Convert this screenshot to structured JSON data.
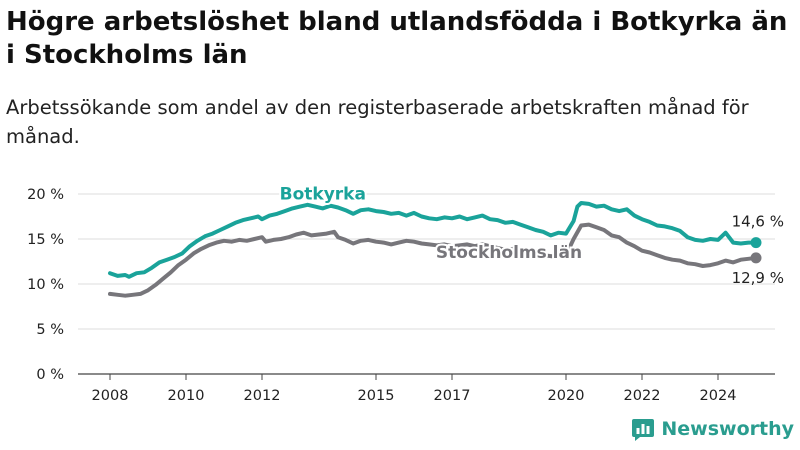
{
  "title": "Högre arbetslöshet bland utlandsfödda i Botkyrka än i Stockholms län",
  "subtitle": "Arbetssökande som andel av den registerbaserade arbetskraften månad för månad.",
  "brand": "Newsworthy",
  "colors": {
    "botkyrka": "#1aa39a",
    "stockholm": "#77767b",
    "grid": "#dddddd",
    "axis": "#444444"
  },
  "chart_data": {
    "type": "line",
    "xlabel": "",
    "ylabel": "",
    "ylim": [
      0,
      20
    ],
    "xlim": [
      2008,
      2025.5
    ],
    "grid": true,
    "y_ticks": [
      {
        "value": 0,
        "label": "0 %"
      },
      {
        "value": 5,
        "label": "5 %"
      },
      {
        "value": 10,
        "label": "10 %"
      },
      {
        "value": 15,
        "label": "15 %"
      },
      {
        "value": 20,
        "label": "20 %"
      }
    ],
    "x_ticks": [
      {
        "value": 2008,
        "label": "2008"
      },
      {
        "value": 2010,
        "label": "2010"
      },
      {
        "value": 2012,
        "label": "2012"
      },
      {
        "value": 2015,
        "label": "2015"
      },
      {
        "value": 2017,
        "label": "2017"
      },
      {
        "value": 2020,
        "label": "2020"
      },
      {
        "value": 2022,
        "label": "2022"
      },
      {
        "value": 2024,
        "label": "2024"
      }
    ],
    "series": [
      {
        "name": "Botkyrka",
        "color": "#1aa39a",
        "end_label": "14,6 %",
        "points": [
          [
            2008.0,
            11.2
          ],
          [
            2008.2,
            10.9
          ],
          [
            2008.4,
            11.0
          ],
          [
            2008.5,
            10.8
          ],
          [
            2008.7,
            11.2
          ],
          [
            2008.9,
            11.3
          ],
          [
            2009.1,
            11.8
          ],
          [
            2009.3,
            12.4
          ],
          [
            2009.5,
            12.7
          ],
          [
            2009.7,
            13.0
          ],
          [
            2009.9,
            13.4
          ],
          [
            2010.1,
            14.2
          ],
          [
            2010.3,
            14.8
          ],
          [
            2010.5,
            15.3
          ],
          [
            2010.7,
            15.6
          ],
          [
            2010.9,
            16.0
          ],
          [
            2011.1,
            16.4
          ],
          [
            2011.3,
            16.8
          ],
          [
            2011.5,
            17.1
          ],
          [
            2011.7,
            17.3
          ],
          [
            2011.9,
            17.5
          ],
          [
            2012.0,
            17.2
          ],
          [
            2012.2,
            17.6
          ],
          [
            2012.4,
            17.8
          ],
          [
            2012.6,
            18.1
          ],
          [
            2012.8,
            18.4
          ],
          [
            2013.0,
            18.6
          ],
          [
            2013.2,
            18.8
          ],
          [
            2013.4,
            18.6
          ],
          [
            2013.6,
            18.4
          ],
          [
            2013.8,
            18.7
          ],
          [
            2014.0,
            18.5
          ],
          [
            2014.2,
            18.2
          ],
          [
            2014.4,
            17.8
          ],
          [
            2014.6,
            18.2
          ],
          [
            2014.8,
            18.3
          ],
          [
            2015.0,
            18.1
          ],
          [
            2015.2,
            18.0
          ],
          [
            2015.4,
            17.8
          ],
          [
            2015.6,
            17.9
          ],
          [
            2015.8,
            17.6
          ],
          [
            2016.0,
            17.9
          ],
          [
            2016.2,
            17.5
          ],
          [
            2016.4,
            17.3
          ],
          [
            2016.6,
            17.2
          ],
          [
            2016.8,
            17.4
          ],
          [
            2017.0,
            17.3
          ],
          [
            2017.2,
            17.5
          ],
          [
            2017.4,
            17.2
          ],
          [
            2017.6,
            17.4
          ],
          [
            2017.8,
            17.6
          ],
          [
            2018.0,
            17.2
          ],
          [
            2018.2,
            17.1
          ],
          [
            2018.4,
            16.8
          ],
          [
            2018.6,
            16.9
          ],
          [
            2018.8,
            16.6
          ],
          [
            2019.0,
            16.3
          ],
          [
            2019.2,
            16.0
          ],
          [
            2019.4,
            15.8
          ],
          [
            2019.6,
            15.4
          ],
          [
            2019.8,
            15.7
          ],
          [
            2020.0,
            15.6
          ],
          [
            2020.2,
            17.0
          ],
          [
            2020.3,
            18.6
          ],
          [
            2020.4,
            19.0
          ],
          [
            2020.6,
            18.9
          ],
          [
            2020.8,
            18.6
          ],
          [
            2021.0,
            18.7
          ],
          [
            2021.2,
            18.3
          ],
          [
            2021.4,
            18.1
          ],
          [
            2021.6,
            18.3
          ],
          [
            2021.8,
            17.6
          ],
          [
            2022.0,
            17.2
          ],
          [
            2022.2,
            16.9
          ],
          [
            2022.4,
            16.5
          ],
          [
            2022.6,
            16.4
          ],
          [
            2022.8,
            16.2
          ],
          [
            2023.0,
            15.9
          ],
          [
            2023.2,
            15.2
          ],
          [
            2023.4,
            14.9
          ],
          [
            2023.6,
            14.8
          ],
          [
            2023.8,
            15.0
          ],
          [
            2024.0,
            14.9
          ],
          [
            2024.2,
            15.7
          ],
          [
            2024.4,
            14.6
          ],
          [
            2024.6,
            14.5
          ],
          [
            2024.8,
            14.6
          ],
          [
            2025.0,
            14.6
          ]
        ]
      },
      {
        "name": "Stockholms län",
        "color": "#77767b",
        "end_label": "12,9 %",
        "points": [
          [
            2008.0,
            8.9
          ],
          [
            2008.2,
            8.8
          ],
          [
            2008.4,
            8.7
          ],
          [
            2008.6,
            8.8
          ],
          [
            2008.8,
            8.9
          ],
          [
            2009.0,
            9.3
          ],
          [
            2009.2,
            9.9
          ],
          [
            2009.4,
            10.6
          ],
          [
            2009.6,
            11.3
          ],
          [
            2009.8,
            12.1
          ],
          [
            2010.0,
            12.7
          ],
          [
            2010.2,
            13.4
          ],
          [
            2010.4,
            13.9
          ],
          [
            2010.6,
            14.3
          ],
          [
            2010.8,
            14.6
          ],
          [
            2011.0,
            14.8
          ],
          [
            2011.2,
            14.7
          ],
          [
            2011.4,
            14.9
          ],
          [
            2011.6,
            14.8
          ],
          [
            2011.8,
            15.0
          ],
          [
            2012.0,
            15.2
          ],
          [
            2012.1,
            14.7
          ],
          [
            2012.3,
            14.9
          ],
          [
            2012.5,
            15.0
          ],
          [
            2012.7,
            15.2
          ],
          [
            2012.9,
            15.5
          ],
          [
            2013.1,
            15.7
          ],
          [
            2013.3,
            15.4
          ],
          [
            2013.5,
            15.5
          ],
          [
            2013.7,
            15.6
          ],
          [
            2013.9,
            15.8
          ],
          [
            2014.0,
            15.2
          ],
          [
            2014.2,
            14.9
          ],
          [
            2014.4,
            14.5
          ],
          [
            2014.6,
            14.8
          ],
          [
            2014.8,
            14.9
          ],
          [
            2015.0,
            14.7
          ],
          [
            2015.2,
            14.6
          ],
          [
            2015.4,
            14.4
          ],
          [
            2015.6,
            14.6
          ],
          [
            2015.8,
            14.8
          ],
          [
            2016.0,
            14.7
          ],
          [
            2016.2,
            14.5
          ],
          [
            2016.4,
            14.4
          ],
          [
            2016.6,
            14.3
          ],
          [
            2016.8,
            14.4
          ],
          [
            2017.0,
            14.2
          ],
          [
            2017.2,
            14.3
          ],
          [
            2017.4,
            14.4
          ],
          [
            2017.6,
            14.2
          ],
          [
            2017.8,
            14.4
          ],
          [
            2018.0,
            14.2
          ],
          [
            2018.2,
            14.0
          ],
          [
            2018.4,
            13.8
          ],
          [
            2018.6,
            13.9
          ],
          [
            2018.8,
            13.7
          ],
          [
            2019.0,
            13.5
          ],
          [
            2019.2,
            13.4
          ],
          [
            2019.4,
            13.2
          ],
          [
            2019.6,
            13.1
          ],
          [
            2019.8,
            13.0
          ],
          [
            2020.0,
            13.2
          ],
          [
            2020.2,
            15.0
          ],
          [
            2020.4,
            16.5
          ],
          [
            2020.6,
            16.6
          ],
          [
            2020.8,
            16.3
          ],
          [
            2021.0,
            16.0
          ],
          [
            2021.2,
            15.4
          ],
          [
            2021.4,
            15.2
          ],
          [
            2021.6,
            14.6
          ],
          [
            2021.8,
            14.2
          ],
          [
            2022.0,
            13.7
          ],
          [
            2022.2,
            13.5
          ],
          [
            2022.4,
            13.2
          ],
          [
            2022.6,
            12.9
          ],
          [
            2022.8,
            12.7
          ],
          [
            2023.0,
            12.6
          ],
          [
            2023.2,
            12.3
          ],
          [
            2023.4,
            12.2
          ],
          [
            2023.6,
            12.0
          ],
          [
            2023.8,
            12.1
          ],
          [
            2024.0,
            12.3
          ],
          [
            2024.2,
            12.6
          ],
          [
            2024.4,
            12.4
          ],
          [
            2024.6,
            12.7
          ],
          [
            2024.8,
            12.8
          ],
          [
            2025.0,
            12.9
          ]
        ]
      }
    ],
    "annotations": [
      {
        "text": "Botkyrka",
        "series": 0,
        "at_x": 2013.6,
        "at_y": 19.4,
        "anchor": "middle"
      },
      {
        "text": "Stockholms län",
        "series": 1,
        "at_x": 2018.5,
        "at_y": 12.9,
        "anchor": "middle"
      }
    ]
  }
}
